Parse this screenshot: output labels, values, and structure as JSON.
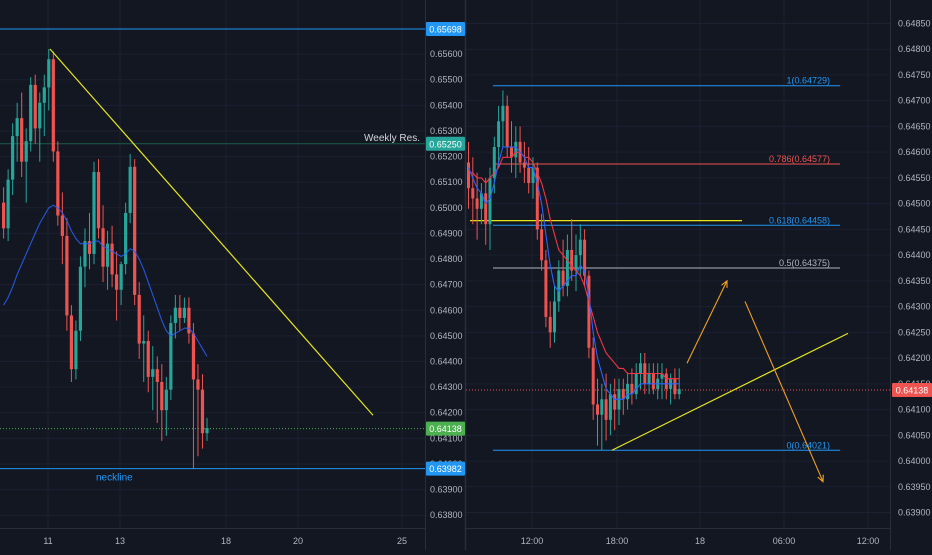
{
  "colors": {
    "background": "#131722",
    "bull": "#26a69a",
    "bear": "#ef5350",
    "grid": "#1c2030",
    "axis_text": "#b2b5be",
    "separator": "#2a2e39",
    "blue_line": "#2196f3",
    "yellow": "#e6e619",
    "orange": "#f0a020",
    "green_dash": "#4caf50",
    "red_dash": "#ef5350"
  },
  "chart_data": [
    {
      "type": "candlestick",
      "panel": "left",
      "x_ticks": [
        "11",
        "13",
        "18",
        "20",
        "25"
      ],
      "y_ticks": [
        "0.65600",
        "0.65500",
        "0.65400",
        "0.65300",
        "0.65200",
        "0.65100",
        "0.65000",
        "0.64900",
        "0.64800",
        "0.64700",
        "0.64600",
        "0.64500",
        "0.64400",
        "0.64300",
        "0.64200",
        "0.64100",
        "0.64000",
        "0.63900",
        "0.63800"
      ],
      "ylim": [
        0.6375,
        0.6578
      ],
      "price_labels": [
        {
          "text": "0.65698",
          "value": 0.65698,
          "color": "#2196f3"
        },
        {
          "text": "0.65250",
          "value": 0.6525,
          "color": "#26a69a"
        },
        {
          "text": "0.64138",
          "value": 0.64138,
          "color": "#4caf50"
        },
        {
          "text": "0.63982",
          "value": 0.63982,
          "color": "#2196f3"
        }
      ],
      "annotations": {
        "weekly_res": "Weekly Res.",
        "neckline": "neckline"
      },
      "lines": {
        "top_resistance": 0.65698,
        "weekly_resistance": 0.6525,
        "current_price": 0.64138,
        "neckline": 0.63982
      },
      "trendline": {
        "from_price": 0.6562,
        "to_price": 0.6419
      },
      "candles": [
        [
          0.6502,
          0.6508,
          0.6488,
          0.6492
        ],
        [
          0.6492,
          0.6515,
          0.6487,
          0.6511
        ],
        [
          0.6511,
          0.6533,
          0.6505,
          0.6528
        ],
        [
          0.6528,
          0.6541,
          0.6518,
          0.6535
        ],
        [
          0.6535,
          0.6545,
          0.6512,
          0.6518
        ],
        [
          0.6518,
          0.6531,
          0.6502,
          0.6526
        ],
        [
          0.6526,
          0.6551,
          0.6522,
          0.6548
        ],
        [
          0.6548,
          0.6552,
          0.6525,
          0.6531
        ],
        [
          0.6531,
          0.6545,
          0.6518,
          0.6541
        ],
        [
          0.6541,
          0.6552,
          0.6528,
          0.6547
        ],
        [
          0.6547,
          0.6562,
          0.6538,
          0.6558
        ],
        [
          0.6558,
          0.6561,
          0.6518,
          0.6522
        ],
        [
          0.6522,
          0.6526,
          0.6493,
          0.6497
        ],
        [
          0.6497,
          0.6506,
          0.6478,
          0.6489
        ],
        [
          0.6489,
          0.6496,
          0.6452,
          0.6458
        ],
        [
          0.6458,
          0.6462,
          0.6432,
          0.6437
        ],
        [
          0.6437,
          0.6456,
          0.6433,
          0.6452
        ],
        [
          0.6452,
          0.6481,
          0.6448,
          0.6477
        ],
        [
          0.6477,
          0.6492,
          0.6469,
          0.6487
        ],
        [
          0.6487,
          0.6498,
          0.6476,
          0.6482
        ],
        [
          0.6482,
          0.6518,
          0.6478,
          0.6514
        ],
        [
          0.6514,
          0.6519,
          0.6488,
          0.6492
        ],
        [
          0.6492,
          0.6501,
          0.6471,
          0.6477
        ],
        [
          0.6477,
          0.6491,
          0.6468,
          0.6486
        ],
        [
          0.6486,
          0.6493,
          0.6469,
          0.6474
        ],
        [
          0.6474,
          0.6483,
          0.6456,
          0.6468
        ],
        [
          0.6468,
          0.6479,
          0.6462,
          0.6478
        ],
        [
          0.6478,
          0.6502,
          0.6474,
          0.6498
        ],
        [
          0.6498,
          0.6521,
          0.6494,
          0.6516
        ],
        [
          0.6516,
          0.6519,
          0.6462,
          0.6466
        ],
        [
          0.6466,
          0.6471,
          0.6441,
          0.6447
        ],
        [
          0.6447,
          0.6458,
          0.6432,
          0.6448
        ],
        [
          0.6448,
          0.6452,
          0.6428,
          0.6434
        ],
        [
          0.6434,
          0.6446,
          0.6421,
          0.6437
        ],
        [
          0.6437,
          0.6442,
          0.6416,
          0.6432
        ],
        [
          0.6432,
          0.6439,
          0.6409,
          0.6421
        ],
        [
          0.6421,
          0.6434,
          0.6411,
          0.6429
        ],
        [
          0.6429,
          0.6458,
          0.6425,
          0.6455
        ],
        [
          0.6455,
          0.6466,
          0.6449,
          0.6461
        ],
        [
          0.6461,
          0.6466,
          0.6452,
          0.6457
        ],
        [
          0.6457,
          0.6465,
          0.6455,
          0.6461
        ],
        [
          0.6461,
          0.6465,
          0.6447,
          0.6451
        ],
        [
          0.6451,
          0.6455,
          0.6398,
          0.6433
        ],
        [
          0.6433,
          0.6439,
          0.6403,
          0.6429
        ],
        [
          0.6429,
          0.6435,
          0.6406,
          0.6412
        ],
        [
          0.6412,
          0.6418,
          0.6409,
          0.6414
        ]
      ],
      "ma": [
        0.6462,
        0.6465,
        0.6469,
        0.6474,
        0.6478,
        0.6482,
        0.6486,
        0.649,
        0.6494,
        0.6497,
        0.65,
        0.6501,
        0.65,
        0.6498,
        0.6495,
        0.6491,
        0.6488,
        0.6486,
        0.6486,
        0.6486,
        0.6487,
        0.6487,
        0.6485,
        0.6484,
        0.6483,
        0.6482,
        0.6481,
        0.6482,
        0.6484,
        0.6483,
        0.648,
        0.6476,
        0.6471,
        0.6466,
        0.6461,
        0.6456,
        0.6452,
        0.645,
        0.6451,
        0.6452,
        0.6453,
        0.6453,
        0.6451,
        0.6448,
        0.6445,
        0.6442
      ]
    },
    {
      "type": "candlestick",
      "panel": "right",
      "x_ticks": [
        "12:00",
        "18:00",
        "18",
        "06:00",
        "12:00"
      ],
      "y_ticks": [
        "0.64850",
        "0.64800",
        "0.64750",
        "0.64700",
        "0.64650",
        "0.64600",
        "0.64550",
        "0.64500",
        "0.64450",
        "0.64400",
        "0.64350",
        "0.64300",
        "0.64250",
        "0.64200",
        "0.64150",
        "0.64100",
        "0.64050",
        "0.64000",
        "0.63950",
        "0.63900"
      ],
      "ylim": [
        0.6387,
        0.6488
      ],
      "price_labels": [
        {
          "text": "0.64138",
          "value": 0.64138,
          "color": "#ef5350"
        }
      ],
      "fib_levels": [
        {
          "label": "1(0.64729)",
          "value": 0.64729,
          "color": "#2196f3"
        },
        {
          "label": "0.786(0.64577)",
          "value": 0.64577,
          "color": "#ef5350"
        },
        {
          "label": "0.618(0.64458)",
          "value": 0.64458,
          "color": "#2196f3"
        },
        {
          "label": "0.5(0.64375)",
          "value": 0.64375,
          "color": "#b2b5be"
        },
        {
          "label": "0(0.64021)",
          "value": 0.64021,
          "color": "#2196f3"
        }
      ],
      "lines": {
        "current_price": 0.64138,
        "yellow_horizontal": 0.64467
      },
      "trendline": {
        "from_price": 0.64021,
        "to_price": 0.64248
      },
      "arrows": [
        {
          "from_price": 0.6419,
          "to_price": 0.6435
        },
        {
          "from_price": 0.6431,
          "to_price": 0.6396
        }
      ],
      "candles": [
        [
          0.6458,
          0.6462,
          0.6449,
          0.6453
        ],
        [
          0.6453,
          0.6459,
          0.6446,
          0.6451
        ],
        [
          0.6451,
          0.6456,
          0.6443,
          0.6449
        ],
        [
          0.6449,
          0.6454,
          0.6446,
          0.6452
        ],
        [
          0.6452,
          0.6455,
          0.6442,
          0.6446
        ],
        [
          0.6446,
          0.6457,
          0.6441,
          0.6455
        ],
        [
          0.6455,
          0.6463,
          0.6452,
          0.6461
        ],
        [
          0.6461,
          0.6469,
          0.6457,
          0.6466
        ],
        [
          0.6466,
          0.6472,
          0.6461,
          0.6469
        ],
        [
          0.6469,
          0.6471,
          0.6459,
          0.6461
        ],
        [
          0.6461,
          0.6466,
          0.6456,
          0.6459
        ],
        [
          0.6459,
          0.6465,
          0.6455,
          0.6462
        ],
        [
          0.6462,
          0.6465,
          0.6456,
          0.6458
        ],
        [
          0.6458,
          0.6462,
          0.6454,
          0.6457
        ],
        [
          0.6457,
          0.6461,
          0.6452,
          0.6454
        ],
        [
          0.6454,
          0.6459,
          0.6451,
          0.6457
        ],
        [
          0.6457,
          0.6458,
          0.6443,
          0.6445
        ],
        [
          0.6445,
          0.6448,
          0.6437,
          0.6439
        ],
        [
          0.6439,
          0.6441,
          0.6426,
          0.6428
        ],
        [
          0.6428,
          0.6431,
          0.6422,
          0.6425
        ],
        [
          0.6425,
          0.6434,
          0.6423,
          0.6431
        ],
        [
          0.6431,
          0.6439,
          0.6429,
          0.6437
        ],
        [
          0.6437,
          0.6443,
          0.6432,
          0.6434
        ],
        [
          0.6434,
          0.6444,
          0.6432,
          0.6441
        ],
        [
          0.6441,
          0.6447,
          0.6435,
          0.6437
        ],
        [
          0.6437,
          0.6444,
          0.6433,
          0.644
        ],
        [
          0.644,
          0.6446,
          0.6436,
          0.6443
        ],
        [
          0.6443,
          0.6445,
          0.6434,
          0.6436
        ],
        [
          0.6436,
          0.6437,
          0.642,
          0.6422
        ],
        [
          0.6422,
          0.6424,
          0.6408,
          0.6411
        ],
        [
          0.6411,
          0.6416,
          0.6403,
          0.6409
        ],
        [
          0.6409,
          0.6415,
          0.6402,
          0.6412
        ],
        [
          0.6412,
          0.6417,
          0.6404,
          0.6408
        ],
        [
          0.6408,
          0.6415,
          0.6405,
          0.6413
        ],
        [
          0.6413,
          0.6416,
          0.6406,
          0.641
        ],
        [
          0.641,
          0.6416,
          0.6407,
          0.6414
        ],
        [
          0.6414,
          0.6416,
          0.6409,
          0.6412
        ],
        [
          0.6412,
          0.6417,
          0.641,
          0.6415
        ],
        [
          0.6415,
          0.6418,
          0.6411,
          0.6413
        ],
        [
          0.6413,
          0.6419,
          0.6412,
          0.6417
        ],
        [
          0.6417,
          0.6421,
          0.6414,
          0.6419
        ],
        [
          0.6419,
          0.6421,
          0.6413,
          0.6415
        ],
        [
          0.6415,
          0.6419,
          0.6413,
          0.6417
        ],
        [
          0.6417,
          0.6419,
          0.6413,
          0.6414
        ],
        [
          0.6414,
          0.6419,
          0.6412,
          0.6416
        ],
        [
          0.6416,
          0.6419,
          0.6412,
          0.6417
        ],
        [
          0.6417,
          0.6418,
          0.6412,
          0.6414
        ],
        [
          0.6414,
          0.6417,
          0.6411,
          0.6416
        ],
        [
          0.6416,
          0.6418,
          0.6412,
          0.6413
        ],
        [
          0.6413,
          0.6418,
          0.6412,
          0.6414
        ]
      ],
      "ma_red": [
        0.6456,
        0.6456,
        0.6455,
        0.6455,
        0.6454,
        0.6455,
        0.6456,
        0.6457,
        0.6459,
        0.6459,
        0.6459,
        0.646,
        0.646,
        0.6459,
        0.6459,
        0.6458,
        0.6456,
        0.6454,
        0.6451,
        0.6447,
        0.6444,
        0.6441,
        0.644,
        0.6439,
        0.6438,
        0.6437,
        0.6436,
        0.6434,
        0.6431,
        0.6428,
        0.6425,
        0.6423,
        0.6421,
        0.642,
        0.6419,
        0.6418,
        0.6418,
        0.6417,
        0.6417,
        0.6417,
        0.6417,
        0.6417,
        0.6417,
        0.6417,
        0.6417,
        0.6417,
        0.6416,
        0.6416,
        0.6416,
        0.6416
      ],
      "ma_blue": [
        0.6457,
        0.6455,
        0.6453,
        0.6452,
        0.645,
        0.6451,
        0.6454,
        0.6458,
        0.6461,
        0.6461,
        0.6461,
        0.6461,
        0.646,
        0.6459,
        0.6457,
        0.6457,
        0.6454,
        0.645,
        0.6444,
        0.6438,
        0.6434,
        0.6433,
        0.6434,
        0.6435,
        0.6436,
        0.6436,
        0.6438,
        0.6437,
        0.6432,
        0.6425,
        0.642,
        0.6417,
        0.6414,
        0.6413,
        0.6412,
        0.6412,
        0.6412,
        0.6413,
        0.6413,
        0.6414,
        0.6415,
        0.6415,
        0.6415,
        0.6415,
        0.6415,
        0.6415,
        0.6415,
        0.6415,
        0.6415,
        0.6415
      ]
    }
  ]
}
